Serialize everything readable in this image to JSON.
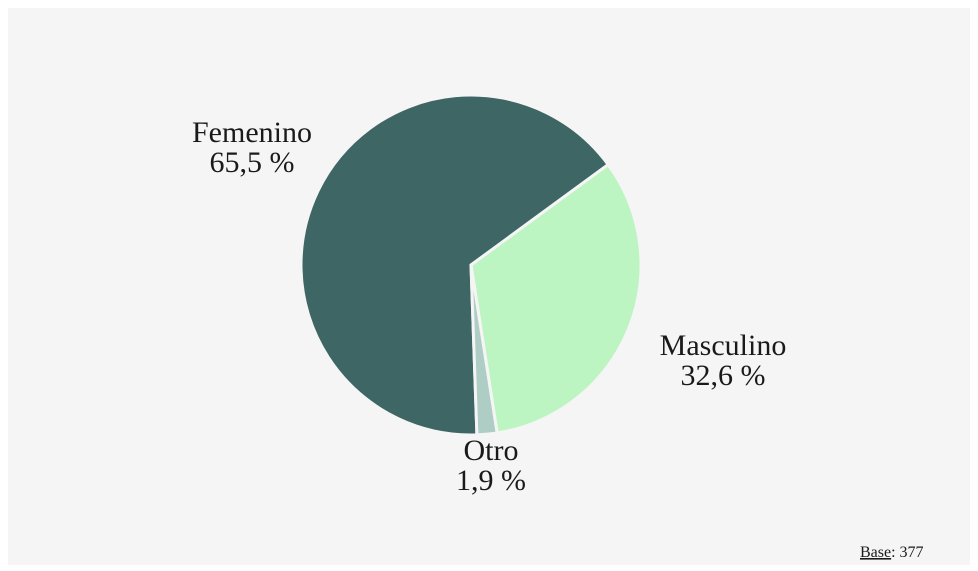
{
  "chart_data": {
    "type": "pie",
    "categories": [
      "Femenino",
      "Masculino",
      "Otro"
    ],
    "values": [
      65.5,
      32.6,
      1.9
    ],
    "value_labels": [
      "65,5 %",
      "32,6 %",
      "1,9 %"
    ],
    "colors": [
      "#3d6664",
      "#bdf5c2",
      "#aecdc4"
    ],
    "base": {
      "label": "Base",
      "text": ": 377"
    }
  }
}
